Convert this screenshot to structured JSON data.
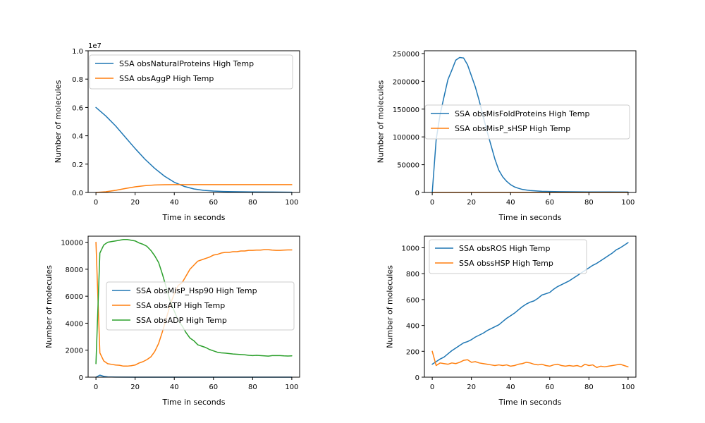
{
  "chart_data": [
    {
      "type": "line",
      "xlabel": "Time in seconds",
      "ylabel": "Number of molecules",
      "xlim": [
        -4,
        104
      ],
      "ylim": [
        0,
        10000000
      ],
      "xticks": [
        0,
        20,
        40,
        60,
        80,
        100
      ],
      "xtick_labels": [
        "0",
        "20",
        "40",
        "60",
        "80",
        "100"
      ],
      "yticks": [
        0,
        2000000,
        4000000,
        6000000,
        8000000,
        10000000
      ],
      "ytick_labels": [
        "0.0",
        "0.2",
        "0.4",
        "0.6",
        "0.8",
        "1.0"
      ],
      "offset_text": "1e7",
      "legend_position": "top-left",
      "series": [
        {
          "name": "SSA obsNaturalProteins High Temp",
          "color": "#1f77b4",
          "x": [
            0,
            5,
            10,
            15,
            20,
            25,
            30,
            35,
            40,
            45,
            50,
            55,
            60,
            65,
            70,
            80,
            90,
            100
          ],
          "y": [
            6000000,
            5400000,
            4700000,
            3900000,
            3100000,
            2350000,
            1700000,
            1150000,
            720000,
            430000,
            250000,
            150000,
            100000,
            70000,
            55000,
            40000,
            30000,
            20000
          ]
        },
        {
          "name": "SSA obsAggP High Temp",
          "color": "#ff7f0e",
          "x": [
            0,
            5,
            10,
            15,
            20,
            25,
            30,
            35,
            40,
            50,
            60,
            70,
            80,
            90,
            100
          ],
          "y": [
            0,
            50000,
            150000,
            280000,
            400000,
            480000,
            530000,
            550000,
            555000,
            555000,
            555000,
            555000,
            555000,
            555000,
            555000
          ]
        }
      ]
    },
    {
      "type": "line",
      "xlabel": "Time in seconds",
      "ylabel": "Number of molecules",
      "xlim": [
        -4,
        104
      ],
      "ylim": [
        0,
        255000
      ],
      "xticks": [
        0,
        20,
        40,
        60,
        80,
        100
      ],
      "xtick_labels": [
        "0",
        "20",
        "40",
        "60",
        "80",
        "100"
      ],
      "yticks": [
        0,
        50000,
        100000,
        150000,
        200000,
        250000
      ],
      "ytick_labels": [
        "0",
        "50000",
        "100000",
        "150000",
        "200000",
        "250000"
      ],
      "legend_position": "center-right",
      "series": [
        {
          "name": "SSA obsMisFoldProteins High Temp",
          "color": "#1f77b4",
          "x": [
            0,
            2,
            4,
            6,
            8,
            10,
            12,
            14,
            16,
            18,
            20,
            22,
            24,
            26,
            28,
            30,
            32,
            34,
            36,
            38,
            40,
            42,
            44,
            46,
            48,
            50,
            52,
            54,
            56,
            60,
            65,
            70,
            80,
            90,
            100
          ],
          "y": [
            0,
            95000,
            140000,
            172000,
            203000,
            220000,
            238000,
            243000,
            242000,
            230000,
            210000,
            190000,
            165000,
            137000,
            110000,
            85000,
            60000,
            40000,
            28000,
            20000,
            14000,
            10000,
            7500,
            5500,
            4500,
            3500,
            3000,
            2500,
            2000,
            1800,
            1500,
            1300,
            1000,
            900,
            800
          ]
        },
        {
          "name": "SSA obsMisP_sHSP High Temp",
          "color": "#ff7f0e",
          "x": [
            0,
            20,
            40,
            60,
            80,
            100
          ],
          "y": [
            0,
            0,
            0,
            0,
            0,
            0
          ]
        }
      ]
    },
    {
      "type": "line",
      "xlabel": "Time in seconds",
      "ylabel": "Number of molecules",
      "xlim": [
        -4,
        104
      ],
      "ylim": [
        0,
        10450
      ],
      "xticks": [
        0,
        20,
        40,
        60,
        80,
        100
      ],
      "xtick_labels": [
        "0",
        "20",
        "40",
        "60",
        "80",
        "100"
      ],
      "yticks": [
        0,
        2000,
        4000,
        6000,
        8000,
        10000
      ],
      "ytick_labels": [
        "0",
        "2000",
        "4000",
        "6000",
        "8000",
        "10000"
      ],
      "legend_position": "center-right",
      "series": [
        {
          "name": "SSA obsMisP_Hsp90 High Temp",
          "color": "#1f77b4",
          "x": [
            0,
            2,
            4,
            6,
            8,
            10,
            20,
            30,
            40,
            50,
            60,
            70,
            80,
            90,
            100
          ],
          "y": [
            0,
            150,
            60,
            20,
            10,
            5,
            0,
            0,
            0,
            0,
            0,
            0,
            0,
            0,
            0
          ]
        },
        {
          "name": "SSA obsATP High Temp",
          "color": "#ff7f0e",
          "x": [
            0,
            2,
            4,
            6,
            8,
            10,
            12,
            14,
            16,
            18,
            20,
            22,
            24,
            26,
            28,
            30,
            32,
            34,
            36,
            38,
            40,
            42,
            44,
            46,
            48,
            50,
            52,
            54,
            56,
            58,
            60,
            62,
            64,
            66,
            68,
            70,
            72,
            74,
            76,
            78,
            80,
            82,
            84,
            86,
            88,
            90,
            92,
            94,
            96,
            98,
            100
          ],
          "y": [
            10000,
            1800,
            1200,
            1000,
            950,
            900,
            880,
            820,
            820,
            850,
            900,
            1050,
            1150,
            1300,
            1500,
            1900,
            2500,
            3400,
            4400,
            5400,
            6200,
            6800,
            7000,
            7500,
            8000,
            8300,
            8600,
            8700,
            8800,
            8900,
            9050,
            9100,
            9200,
            9250,
            9250,
            9300,
            9300,
            9350,
            9350,
            9400,
            9400,
            9420,
            9420,
            9450,
            9450,
            9420,
            9400,
            9400,
            9420,
            9430,
            9430
          ]
        },
        {
          "name": "SSA obsADP High Temp",
          "color": "#2ca02c",
          "x": [
            0,
            2,
            4,
            6,
            8,
            10,
            12,
            14,
            16,
            18,
            20,
            22,
            24,
            26,
            28,
            30,
            32,
            34,
            36,
            38,
            40,
            42,
            44,
            46,
            48,
            50,
            52,
            54,
            56,
            58,
            60,
            62,
            64,
            66,
            68,
            70,
            72,
            74,
            76,
            78,
            80,
            82,
            84,
            86,
            88,
            90,
            92,
            94,
            96,
            98,
            100
          ],
          "y": [
            1000,
            9200,
            9800,
            10000,
            10050,
            10100,
            10150,
            10200,
            10200,
            10150,
            10100,
            9950,
            9850,
            9700,
            9400,
            9000,
            8500,
            7600,
            6600,
            5600,
            4900,
            4200,
            3800,
            3300,
            2900,
            2700,
            2400,
            2300,
            2200,
            2050,
            1950,
            1850,
            1800,
            1780,
            1750,
            1720,
            1700,
            1680,
            1660,
            1620,
            1600,
            1620,
            1600,
            1580,
            1560,
            1600,
            1600,
            1600,
            1580,
            1570,
            1580
          ]
        }
      ]
    },
    {
      "type": "line",
      "xlabel": "Time in seconds",
      "ylabel": "Number of molecules",
      "xlim": [
        -4,
        104
      ],
      "ylim": [
        0,
        1090
      ],
      "xticks": [
        0,
        20,
        40,
        60,
        80,
        100
      ],
      "xtick_labels": [
        "0",
        "20",
        "40",
        "60",
        "80",
        "100"
      ],
      "yticks": [
        0,
        200,
        400,
        600,
        800,
        1000
      ],
      "ytick_labels": [
        "0",
        "200",
        "400",
        "600",
        "800",
        "1000"
      ],
      "legend_position": "top-left",
      "series": [
        {
          "name": "SSA obsROS High Temp",
          "color": "#1f77b4",
          "x": [
            0,
            2,
            4,
            6,
            8,
            10,
            12,
            14,
            16,
            18,
            20,
            22,
            24,
            26,
            28,
            30,
            32,
            34,
            36,
            38,
            40,
            42,
            44,
            46,
            48,
            50,
            52,
            54,
            56,
            58,
            60,
            62,
            64,
            66,
            68,
            70,
            72,
            74,
            76,
            78,
            80,
            82,
            84,
            86,
            88,
            90,
            92,
            94,
            96,
            98,
            100
          ],
          "y": [
            100,
            120,
            140,
            155,
            180,
            205,
            225,
            245,
            265,
            275,
            290,
            310,
            325,
            340,
            360,
            375,
            390,
            405,
            430,
            455,
            475,
            495,
            520,
            545,
            565,
            580,
            590,
            610,
            635,
            645,
            655,
            680,
            700,
            715,
            730,
            745,
            765,
            785,
            805,
            825,
            845,
            865,
            880,
            900,
            920,
            940,
            960,
            985,
            1000,
            1020,
            1040
          ]
        },
        {
          "name": "SSA obssHSP High Temp",
          "color": "#ff7f0e",
          "x": [
            0,
            2,
            4,
            6,
            8,
            10,
            12,
            14,
            16,
            18,
            20,
            22,
            24,
            26,
            28,
            30,
            32,
            34,
            36,
            38,
            40,
            42,
            44,
            46,
            48,
            50,
            52,
            54,
            56,
            58,
            60,
            62,
            64,
            66,
            68,
            70,
            72,
            74,
            76,
            78,
            80,
            82,
            84,
            86,
            88,
            90,
            92,
            94,
            96,
            98,
            100
          ],
          "y": [
            200,
            90,
            110,
            105,
            100,
            110,
            105,
            115,
            130,
            135,
            115,
            120,
            110,
            105,
            100,
            95,
            90,
            95,
            90,
            95,
            85,
            90,
            100,
            105,
            115,
            110,
            100,
            95,
            100,
            90,
            85,
            95,
            100,
            90,
            85,
            90,
            85,
            90,
            80,
            100,
            90,
            95,
            75,
            85,
            80,
            85,
            90,
            95,
            100,
            90,
            80
          ]
        }
      ]
    }
  ]
}
